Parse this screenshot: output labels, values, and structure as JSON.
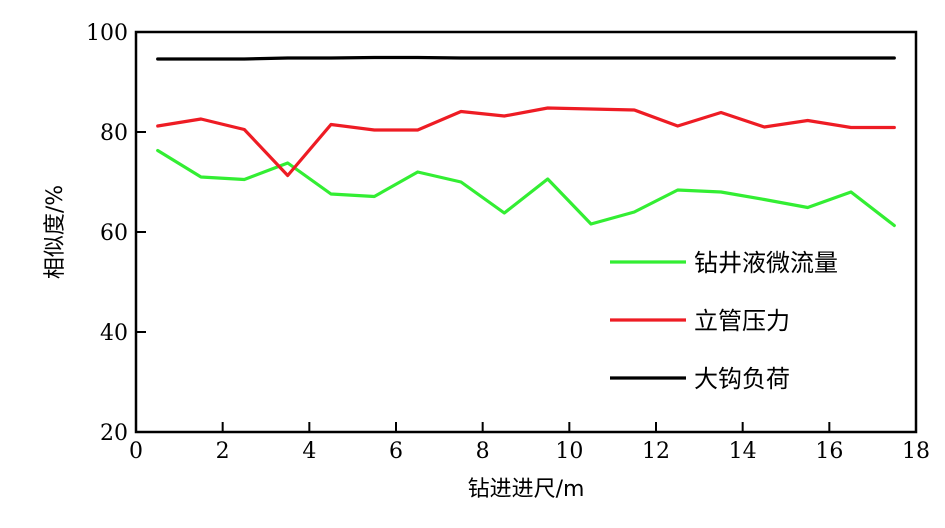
{
  "chart_data": {
    "type": "line",
    "title": "",
    "xlabel": "钻进进尺/m",
    "ylabel": "相似度/%",
    "xlim": [
      0,
      18
    ],
    "ylim": [
      20,
      100
    ],
    "xticks": [
      0,
      2,
      4,
      6,
      8,
      10,
      12,
      14,
      16,
      18
    ],
    "yticks": [
      20,
      40,
      60,
      80,
      100
    ],
    "xtick_labels": [
      "0",
      "2",
      "4",
      "6",
      "8",
      "10",
      "12",
      "14",
      "16",
      "18"
    ],
    "ytick_labels": [
      "20",
      "40",
      "60",
      "80",
      "100"
    ],
    "grid": false,
    "legend_position": "bottom-right",
    "x": [
      0.5,
      1.5,
      2.5,
      3.5,
      4.5,
      5.5,
      6.5,
      7.5,
      8.5,
      9.5,
      10.5,
      11.5,
      12.5,
      13.5,
      14.5,
      15.5,
      16.5,
      17.5
    ],
    "series": [
      {
        "name": "钻井液微流量",
        "color": "#33ee33",
        "values": [
          76.3,
          71.0,
          70.5,
          73.8,
          67.6,
          67.1,
          72.0,
          70.0,
          63.8,
          70.6,
          61.6,
          64.0,
          68.4,
          68.0,
          66.5,
          64.9,
          68.0,
          61.3
        ]
      },
      {
        "name": "立管压力",
        "color": "#ee1c24",
        "values": [
          81.2,
          82.6,
          80.5,
          71.3,
          81.5,
          80.4,
          80.4,
          84.1,
          83.2,
          84.8,
          84.6,
          84.4,
          81.2,
          83.9,
          81.0,
          82.3,
          80.9,
          80.9
        ]
      },
      {
        "name": "大钩负荷",
        "color": "#000000",
        "values": [
          94.6,
          94.6,
          94.6,
          94.8,
          94.8,
          94.9,
          94.9,
          94.8,
          94.8,
          94.8,
          94.8,
          94.8,
          94.8,
          94.8,
          94.8,
          94.8,
          94.8,
          94.8
        ]
      }
    ]
  }
}
